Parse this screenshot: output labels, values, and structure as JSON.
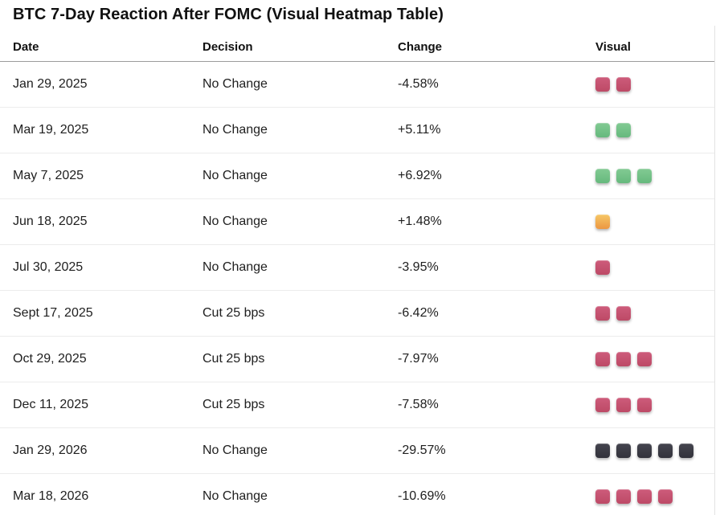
{
  "title": "BTC 7-Day Reaction After FOMC (Visual Heatmap Table)",
  "chart_data": {
    "type": "table",
    "title": "BTC 7-Day Reaction After FOMC (Visual Heatmap Table)",
    "columns": [
      "Date",
      "Decision",
      "Change",
      "Visual"
    ],
    "rows": [
      {
        "date": "Jan 29, 2025",
        "decision": "No Change",
        "change": "-4.58%",
        "change_pct": -4.58,
        "visual_count": 2,
        "visual_color": "red"
      },
      {
        "date": "Mar 19, 2025",
        "decision": "No Change",
        "change": "+5.11%",
        "change_pct": 5.11,
        "visual_count": 2,
        "visual_color": "green"
      },
      {
        "date": "May 7, 2025",
        "decision": "No Change",
        "change": "+6.92%",
        "change_pct": 6.92,
        "visual_count": 3,
        "visual_color": "green"
      },
      {
        "date": "Jun 18, 2025",
        "decision": "No Change",
        "change": "+1.48%",
        "change_pct": 1.48,
        "visual_count": 1,
        "visual_color": "orange"
      },
      {
        "date": "Jul 30, 2025",
        "decision": "No Change",
        "change": "-3.95%",
        "change_pct": -3.95,
        "visual_count": 1,
        "visual_color": "red"
      },
      {
        "date": "Sept 17, 2025",
        "decision": "Cut 25 bps",
        "change": "-6.42%",
        "change_pct": -6.42,
        "visual_count": 2,
        "visual_color": "red"
      },
      {
        "date": "Oct 29, 2025",
        "decision": "Cut 25 bps",
        "change": "-7.97%",
        "change_pct": -7.97,
        "visual_count": 3,
        "visual_color": "red"
      },
      {
        "date": "Dec 11, 2025",
        "decision": "Cut 25 bps",
        "change": "-7.58%",
        "change_pct": -7.58,
        "visual_count": 3,
        "visual_color": "red"
      },
      {
        "date": "Jan 29, 2026",
        "decision": "No Change",
        "change": "-29.57%",
        "change_pct": -29.57,
        "visual_count": 5,
        "visual_color": "dark"
      },
      {
        "date": "Mar 18, 2026",
        "decision": "No Change",
        "change": "-10.69%",
        "change_pct": -10.69,
        "visual_count": 4,
        "visual_color": "red"
      }
    ]
  },
  "colors": {
    "red": {
      "top": "#cd5c7b",
      "bottom": "#bd4a66"
    },
    "green": {
      "top": "#82ca93",
      "bottom": "#66b97d"
    },
    "orange": {
      "top": "#f6c766",
      "bottom": "#ec9742"
    },
    "dark": {
      "top": "#45454f",
      "bottom": "#32323b"
    }
  }
}
